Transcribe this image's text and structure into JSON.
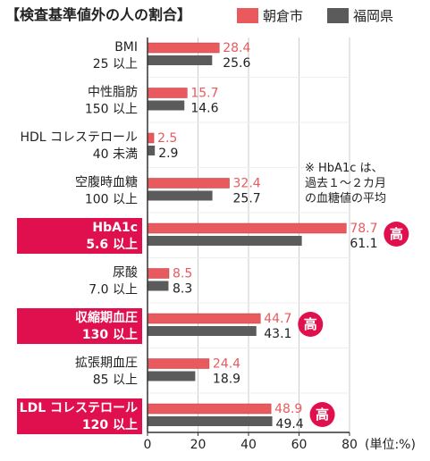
{
  "title": "【検査基準値外の人の割合】",
  "unit_label": "(単位:%)",
  "note_lines": [
    "※ HbA1c は、",
    "過去１～２カ月",
    "の血糖値の平均"
  ],
  "badge_text": "高",
  "colors": {
    "series_a": "#e95a5e",
    "series_b": "#5b5b5b",
    "highlight": "#e0104f",
    "grid": "#cccccc",
    "axis": "#333333"
  },
  "chart_data": {
    "type": "bar",
    "orientation": "horizontal",
    "categories": [
      {
        "name": "BMI",
        "threshold": "25 以上",
        "highlight": false,
        "badge": false
      },
      {
        "name": "中性脂肪",
        "threshold": "150 以上",
        "highlight": false,
        "badge": false
      },
      {
        "name": "HDL コレステロール",
        "threshold": "40 未満",
        "highlight": false,
        "badge": false
      },
      {
        "name": "空腹時血糖",
        "threshold": "100 以上",
        "highlight": false,
        "badge": false
      },
      {
        "name": "HbA1c",
        "threshold": "5.6 以上",
        "highlight": true,
        "badge": true
      },
      {
        "name": "尿酸",
        "threshold": "7.0 以上",
        "highlight": false,
        "badge": false
      },
      {
        "name": "収縮期血圧",
        "threshold": "130 以上",
        "highlight": true,
        "badge": true
      },
      {
        "name": "拡張期血圧",
        "threshold": "85 以上",
        "highlight": false,
        "badge": false
      },
      {
        "name": "LDL コレステロール",
        "threshold": "120 以上",
        "highlight": true,
        "badge": true
      }
    ],
    "series": [
      {
        "name": "朝倉市",
        "values": [
          28.4,
          15.7,
          2.5,
          32.4,
          78.7,
          8.5,
          44.7,
          24.4,
          48.9
        ]
      },
      {
        "name": "福岡県",
        "values": [
          25.6,
          14.6,
          2.9,
          25.7,
          61.1,
          8.3,
          43.1,
          18.9,
          49.4
        ]
      }
    ],
    "value_labels": [
      [
        "28.4",
        "15.7",
        "2.5",
        "32.4",
        "78.7",
        "8.5",
        "44.7",
        "24.4",
        "48.9"
      ],
      [
        "25.6",
        "14.6",
        "2.9",
        "25.7",
        "61.1",
        "8.3",
        "43.1",
        "18.9",
        "49.4"
      ]
    ],
    "xlim": [
      0,
      80
    ],
    "xticks": [
      0,
      20,
      40,
      60,
      80
    ],
    "xtick_labels": [
      "0",
      "20",
      "40",
      "60",
      "80"
    ],
    "grid": true,
    "legend_position": "top-right"
  }
}
